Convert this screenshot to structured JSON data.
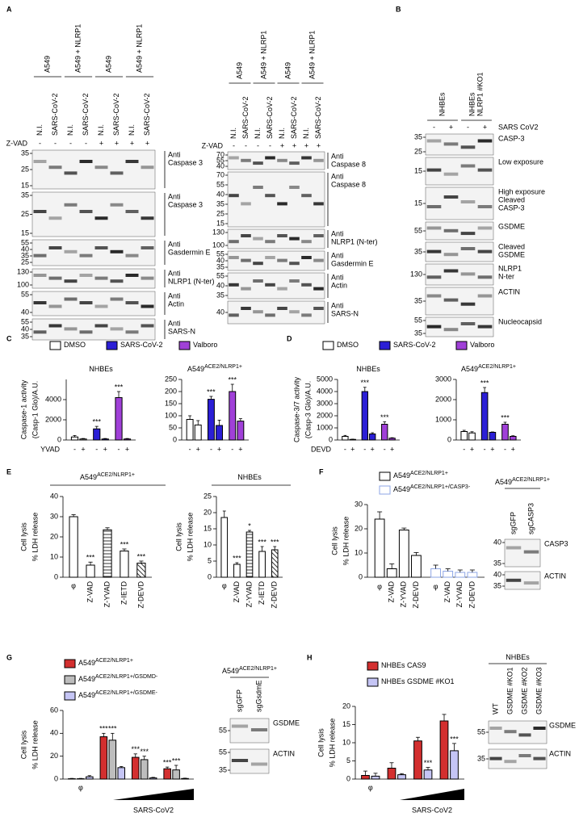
{
  "panel_labels": [
    "A",
    "B",
    "C",
    "D",
    "E",
    "F",
    "G",
    "H"
  ],
  "blots": [
    {
      "groups": [
        [
          "A549"
        ],
        [
          "A549 + NLRP1"
        ],
        [
          "A549"
        ],
        [
          "A549 + NLRP1"
        ]
      ],
      "lanes": [
        "N.I.",
        "SARS-CoV-2",
        "N.I.",
        "SARS-CoV-2",
        "N.I.",
        "SARS-CoV-2",
        "N.I.",
        "SARS-CoV-2"
      ],
      "treatments": [
        {
          "label": "Z-VAD",
          "marks": [
            "-",
            "-",
            "-",
            "-",
            "+",
            "+",
            "+",
            "+"
          ]
        }
      ],
      "strips": [
        {
          "label": [
            "Anti",
            "Caspase 3"
          ],
          "markers": [
            35,
            25,
            15
          ]
        },
        {
          "label": [
            "Anti",
            "Caspase 3"
          ],
          "markers": [
            35,
            25,
            15
          ]
        },
        {
          "label": [
            "Anti",
            "Gasdermin E"
          ],
          "markers": [
            55,
            40,
            35,
            25
          ]
        },
        {
          "label": [
            "Anti",
            "NLRP1 (N-ter)"
          ],
          "markers": [
            130,
            100
          ]
        },
        {
          "label": [
            "Anti",
            "Actin"
          ],
          "markers": [
            55,
            40
          ]
        },
        {
          "label": [
            "Anti",
            "SARS-N"
          ],
          "markers": [
            55,
            40,
            35
          ]
        }
      ]
    },
    {
      "groups": [
        [
          "A549"
        ],
        [
          "A549 + NLRP1"
        ],
        [
          "A549"
        ],
        [
          "A549 + NLRP1"
        ]
      ],
      "lanes": [
        "N.I.",
        "SARS-CoV-2",
        "N.I.",
        "SARS-CoV-2",
        "N.I.",
        "SARS-CoV-2",
        "N.I.",
        "SARS-CoV-2"
      ],
      "treatments": [
        {
          "label": "Z-VAD",
          "marks": [
            "-",
            "-",
            "-",
            "-",
            "+",
            "+",
            "+",
            "+"
          ]
        }
      ],
      "strips": [
        {
          "label": [
            "Anti",
            "Caspase 8"
          ],
          "markers": [
            70,
            55,
            40
          ]
        },
        {
          "label": [
            "Anti",
            "Caspase 8"
          ],
          "markers": [
            70,
            55,
            40,
            35,
            25,
            15
          ]
        },
        {
          "label": [
            "Anti",
            "NLRP1 (N-ter)"
          ],
          "markers": [
            130,
            100
          ]
        },
        {
          "label": [
            "Anti",
            "Gasdermin E"
          ],
          "markers": [
            55,
            40,
            35
          ]
        },
        {
          "label": [
            "Anti",
            "Actin"
          ],
          "markers": [
            55,
            40,
            35
          ]
        },
        {
          "label": [
            "Anti",
            "SARS-N"
          ],
          "markers": [
            40
          ]
        }
      ]
    },
    {
      "groups": [
        [
          "NHBEs"
        ],
        [
          "NHBEs",
          "NLRP1 #KO1"
        ]
      ],
      "treatments": [
        {
          "label": "SARS CoV2",
          "marks": [
            "-",
            "+",
            "-",
            "+"
          ]
        }
      ],
      "strips": [
        {
          "label": [
            "CASP-3"
          ],
          "markers": [
            35,
            25
          ]
        },
        {
          "label": [
            "Low exposure"
          ],
          "markers": [
            15
          ]
        },
        {
          "label": [
            "High exposure",
            "Cleaved",
            "CASP-3"
          ],
          "markers": [
            15
          ]
        },
        {
          "label": [
            "GSDME"
          ],
          "markers": [
            55
          ]
        },
        {
          "label": [
            "Cleaved",
            "GSDME"
          ],
          "markers": [
            35
          ]
        },
        {
          "label": [
            "NLRP1",
            "N-ter"
          ],
          "markers": [
            130
          ]
        },
        {
          "label": [
            "ACTIN"
          ],
          "markers": [
            35
          ]
        },
        {
          "label": [
            "Nucleocapsid"
          ],
          "markers": [
            55,
            35
          ]
        }
      ]
    },
    {
      "title": {
        "text": "A549",
        "sup": "ACE2/NLRP1+"
      },
      "lanes": [
        "sgGFP",
        "sgCASP3"
      ],
      "strips": [
        {
          "label": [
            "CASP3"
          ],
          "markers": [
            40,
            35
          ]
        },
        {
          "label": [
            "ACTIN"
          ],
          "markers": [
            40,
            35
          ]
        }
      ]
    },
    {
      "title": {
        "text": "A549",
        "sup": "ACE2/NLRP1+"
      },
      "lanes": [
        "sgGFP",
        "sgGsdmE"
      ],
      "strips": [
        {
          "label": [
            "GSDME"
          ],
          "markers": [
            55
          ]
        },
        {
          "label": [
            "ACTIN"
          ],
          "markers": [
            55,
            35
          ]
        }
      ]
    },
    {
      "title": {
        "text": "NHBEs"
      },
      "lanes": [
        "WT",
        "GSDME #KO1",
        "GSDME #KO2",
        "GSDME #KO3"
      ],
      "strips": [
        {
          "label": [
            "GSDME"
          ],
          "markers": [
            55
          ]
        },
        {
          "label": [
            "ACTIN"
          ],
          "markers": [
            35
          ]
        }
      ]
    }
  ],
  "chart_data": [
    {
      "type": "bar",
      "grouping": "series",
      "series": [
        {
          "name": "DMSO",
          "color": "#ffffff"
        },
        {
          "name": "SARS-CoV-2",
          "color": "#2b1fd6"
        },
        {
          "name": "Valboro",
          "color": "#a040d8"
        }
      ],
      "x_label": "YVAD",
      "y_label": [
        "Caspase-1 activity",
        "(Casp-1 Glo)/A.U."
      ],
      "categories": [
        "-",
        "+"
      ],
      "subplots": [
        {
          "title": "NHBEs",
          "ylim": [
            0,
            6000
          ],
          "yticks": [
            0,
            2000,
            4000
          ],
          "values": [
            [
              300,
              100
            ],
            [
              1100,
              100
            ],
            [
              4200,
              100
            ]
          ],
          "errors": [
            [
              150,
              50
            ],
            [
              250,
              50
            ],
            [
              600,
              50
            ]
          ],
          "stars": [
            [
              null,
              null
            ],
            [
              "***",
              null
            ],
            [
              "***",
              null
            ]
          ]
        },
        {
          "title": "A549",
          "title_sup": "ACE2/NLRP1+",
          "ylim": [
            0,
            250
          ],
          "yticks": [
            0,
            50,
            100,
            150,
            200,
            250
          ],
          "values": [
            [
              85,
              62
            ],
            [
              168,
              60
            ],
            [
              200,
              78
            ]
          ],
          "errors": [
            [
              15,
              18
            ],
            [
              12,
              22
            ],
            [
              30,
              10
            ]
          ],
          "stars": [
            [
              null,
              null
            ],
            [
              "***",
              null
            ],
            [
              "***",
              null
            ]
          ]
        }
      ]
    },
    {
      "type": "bar",
      "grouping": "series",
      "series": [
        {
          "name": "DMSO",
          "color": "#ffffff"
        },
        {
          "name": "SARS-CoV-2",
          "color": "#2b1fd6"
        },
        {
          "name": "Valboro",
          "color": "#a040d8"
        }
      ],
      "x_label": "DEVD",
      "y_label": [
        "Caspase-3/7 activity",
        "(Casp-3 Glo)/A.U."
      ],
      "categories": [
        "-",
        "+"
      ],
      "subplots": [
        {
          "title": "NHBEs",
          "ylim": [
            0,
            5000
          ],
          "yticks": [
            0,
            1000,
            2000,
            3000,
            4000,
            5000
          ],
          "values": [
            [
              300,
              50
            ],
            [
              4000,
              500
            ],
            [
              1300,
              150
            ]
          ],
          "errors": [
            [
              80,
              20
            ],
            [
              350,
              100
            ],
            [
              200,
              40
            ]
          ],
          "stars": [
            [
              null,
              null
            ],
            [
              "***",
              null
            ],
            [
              "***",
              null
            ]
          ]
        },
        {
          "title": "A549",
          "title_sup": "ACE2/NLRP1+",
          "ylim": [
            0,
            3000
          ],
          "yticks": [
            0,
            1000,
            2000,
            3000
          ],
          "values": [
            [
              420,
              350
            ],
            [
              2350,
              380
            ],
            [
              780,
              180
            ]
          ],
          "errors": [
            [
              60,
              60
            ],
            [
              250,
              20
            ],
            [
              100,
              30
            ]
          ],
          "stars": [
            [
              null,
              null
            ],
            [
              "***",
              null
            ],
            [
              "***",
              null
            ]
          ]
        }
      ]
    },
    {
      "type": "bar",
      "grouping": "category",
      "series": [
        {
          "color": "#ffffff"
        }
      ],
      "y_label": [
        "Cell lysis",
        "% LDH release"
      ],
      "categories": [
        "φ",
        "Z-VAD",
        "Z-YVAD",
        "Z-IETD",
        "Z-DEVD"
      ],
      "hatch": [
        "none",
        "none",
        "horizontal",
        "none",
        "diagonal"
      ],
      "subplots": [
        {
          "title": "A549",
          "title_sup": "ACE2/NLRP1+",
          "ylim": [
            0,
            40
          ],
          "yticks": [
            0,
            10,
            20,
            30,
            40
          ],
          "values": [
            [
              30,
              6,
              23.5,
              13,
              7
            ]
          ],
          "errors": [
            [
              1,
              1.5,
              1,
              1,
              1
            ]
          ],
          "stars": [
            [
              null,
              "***",
              null,
              "***",
              "***"
            ]
          ]
        },
        {
          "title": "NHBEs",
          "ylim": [
            0,
            25
          ],
          "yticks": [
            0,
            5,
            10,
            15,
            20,
            25
          ],
          "values": [
            [
              18.5,
              4,
              14,
              8,
              8.5
            ]
          ],
          "errors": [
            [
              2,
              0.5,
              0.5,
              1.5,
              1
            ]
          ],
          "stars": [
            [
              null,
              "***",
              "*",
              "***",
              "***"
            ]
          ]
        }
      ]
    },
    {
      "type": "bar",
      "grouping": "series",
      "series": [
        {
          "name": "A549",
          "name_sup": "ACE2/NLRP1+",
          "color": "#ffffff",
          "stroke": "#000000"
        },
        {
          "name": "A549",
          "name_sup": "ACE2/NLRP1+/CASP3-",
          "color": "#ffffff",
          "stroke": "#8ea6e6"
        }
      ],
      "y_label": [
        "Cell lysis",
        "% LDH release"
      ],
      "categories": [
        "φ",
        "Z-VAD",
        "Z-YVAD",
        "Z-DEVD"
      ],
      "subplots": [
        {
          "ylim": [
            0,
            30
          ],
          "yticks": [
            0,
            10,
            20,
            30
          ],
          "values": [
            [
              24,
              3.5,
              19.5,
              9
            ],
            [
              3.5,
              2.5,
              2,
              2
            ]
          ],
          "errors": [
            [
              3,
              2,
              0.8,
              1.2
            ],
            [
              1.5,
              1,
              1,
              1
            ]
          ]
        }
      ]
    },
    {
      "type": "bar",
      "grouping": "category",
      "series": [
        {
          "name": "A549",
          "name_sup": "ACE2/NLRP1+",
          "color": "#d32f2f"
        },
        {
          "name": "A549",
          "name_sup": "ACE2/NLRP1+/GSDMD-",
          "color": "#bdbdbd"
        },
        {
          "name": "A549",
          "name_sup": "ACE2/NLRP1+/GSDME-",
          "color": "#c5c5f5"
        }
      ],
      "x_label": "SARS-CoV2",
      "y_label": [
        "Cell lysis",
        "% LDH release"
      ],
      "categories": [
        "φ",
        null,
        null,
        null
      ],
      "subplots": [
        {
          "ylim": [
            0,
            60
          ],
          "yticks": [
            0,
            20,
            40,
            60
          ],
          "values": [
            [
              0.3,
              37,
              19,
              9
            ],
            [
              0.3,
              34,
              17,
              8
            ],
            [
              2,
              10,
              1,
              0.5
            ]
          ],
          "errors": [
            [
              0.3,
              3,
              3,
              1.5
            ],
            [
              0.3,
              6,
              3,
              4
            ],
            [
              1,
              1,
              0.5,
              0.3
            ]
          ],
          "stars": [
            [
              null,
              "***",
              "***",
              "***"
            ],
            [
              null,
              "***",
              "***",
              "***"
            ],
            [
              null,
              null,
              null,
              null
            ]
          ]
        }
      ]
    },
    {
      "type": "bar",
      "grouping": "category",
      "series": [
        {
          "name": "NHBEs CAS9",
          "color": "#d32f2f"
        },
        {
          "name": "NHBEs GSDME #KO1",
          "color": "#c5c5f5"
        }
      ],
      "x_label": "SARS-CoV2",
      "y_label": [
        "Cell lysis",
        "% LDH release"
      ],
      "categories": [
        "φ",
        null,
        null,
        null
      ],
      "subplots": [
        {
          "ylim": [
            0,
            20
          ],
          "yticks": [
            0,
            5,
            10,
            15,
            20
          ],
          "values": [
            [
              1,
              3,
              10.5,
              16
            ],
            [
              0.8,
              1.2,
              2.5,
              7.8
            ]
          ],
          "errors": [
            [
              1.2,
              1.5,
              1,
              1.8
            ],
            [
              0.8,
              0.3,
              0.7,
              2
            ]
          ],
          "stars": [
            [
              null,
              null,
              null,
              null
            ],
            [
              null,
              null,
              "***",
              "***"
            ]
          ]
        }
      ]
    }
  ]
}
